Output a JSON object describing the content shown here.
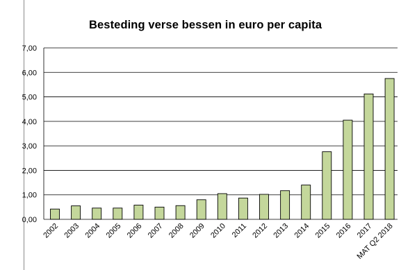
{
  "chart_data": {
    "type": "bar",
    "title": "Besteding verse bessen in euro per capita",
    "categories": [
      "2002",
      "2003",
      "2004",
      "2005",
      "2006",
      "2007",
      "2008",
      "2009",
      "2010",
      "2011",
      "2012",
      "2013",
      "2014",
      "2015",
      "2016",
      "2017",
      "MAT Q2 2018"
    ],
    "values": [
      0.42,
      0.55,
      0.46,
      0.46,
      0.58,
      0.5,
      0.56,
      0.8,
      1.05,
      0.87,
      1.02,
      1.17,
      1.4,
      2.76,
      4.05,
      5.12,
      5.75
    ],
    "ylim": [
      0,
      7
    ],
    "yticks": [
      "0,00",
      "1,00",
      "2,00",
      "3,00",
      "4,00",
      "5,00",
      "6,00",
      "7,00"
    ],
    "xlabel": "",
    "ylabel": "",
    "grid": true,
    "legend": "none",
    "colors": {
      "bar_fill": "#c4d79b",
      "bar_stroke": "#000000",
      "grid": "#000000"
    }
  }
}
